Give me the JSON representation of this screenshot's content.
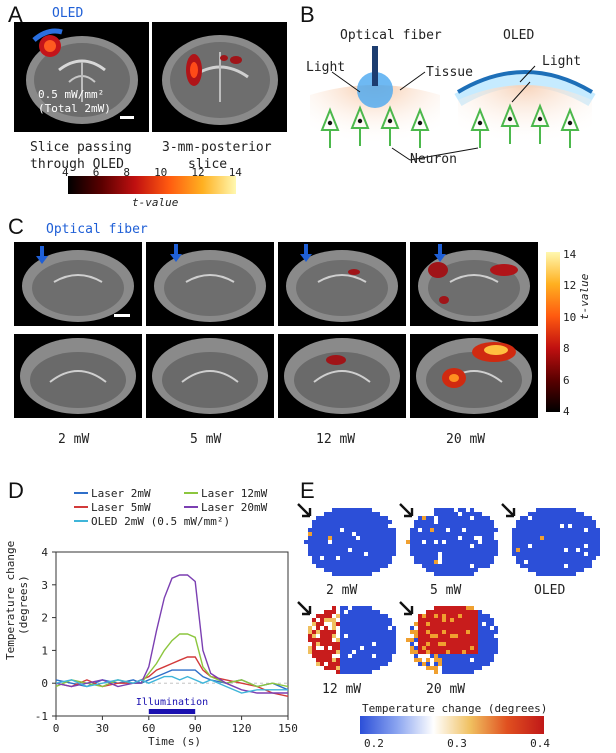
{
  "panels": {
    "A": "A",
    "B": "B",
    "C": "C",
    "D": "D",
    "E": "E"
  },
  "A": {
    "oled_label": "OLED",
    "intensity_line1": "0.5 mW/mm²",
    "intensity_line2": "(Total 2mW)",
    "caption_left_1": "Slice passing",
    "caption_left_2": "through OLED",
    "caption_right_1": "3-mm-posterior",
    "caption_right_2": "slice",
    "colorbar_ticks": [
      "4",
      "6",
      "8",
      "10",
      "12",
      "14"
    ],
    "colorbar_label": "t-value"
  },
  "B": {
    "optical_fiber": "Optical fiber",
    "oled": "OLED",
    "light_left": "Light",
    "light_right": "Light",
    "tissue": "Tissue",
    "neuron": "Neuron"
  },
  "C": {
    "optical_fiber": "Optical fiber",
    "powers": [
      "2 mW",
      "5 mW",
      "12 mW",
      "20 mW"
    ],
    "colorbar_ticks": [
      "14",
      "12",
      "10",
      "8",
      "6",
      "4"
    ],
    "colorbar_label": "t-value"
  },
  "D": {
    "legend": [
      {
        "name": "Laser 2mW",
        "color": "#2f6fc9"
      },
      {
        "name": "Laser 12mW",
        "color": "#8cc63e"
      },
      {
        "name": "Laser 5mW",
        "color": "#d23a3a"
      },
      {
        "name": "Laser 20mW",
        "color": "#7b3fb2"
      },
      {
        "name": "OLED 2mW (0.5 mW/mm²)",
        "color": "#3fb5d9"
      }
    ],
    "illumination": "Illumination",
    "ylabel_1": "Temperature change",
    "ylabel_2": "(degrees)",
    "xlabel": "Time (s)"
  },
  "chart_data": {
    "type": "line",
    "xlabel": "Time (s)",
    "ylabel": "Temperature change (degrees)",
    "xlim": [
      0,
      150
    ],
    "ylim": [
      -1,
      4
    ],
    "xticks": [
      0,
      30,
      60,
      90,
      120,
      150
    ],
    "yticks": [
      -1,
      0,
      1,
      2,
      3,
      4
    ],
    "x": [
      0,
      10,
      20,
      30,
      40,
      50,
      55,
      60,
      65,
      70,
      75,
      80,
      85,
      90,
      95,
      100,
      110,
      120,
      130,
      140,
      150
    ],
    "series": [
      {
        "name": "Laser 2mW",
        "color": "#2f6fc9",
        "values": [
          0.1,
          0.0,
          -0.1,
          0.1,
          0.0,
          0.1,
          0.0,
          0.1,
          0.2,
          0.3,
          0.4,
          0.4,
          0.4,
          0.4,
          0.2,
          0.1,
          0.0,
          0.1,
          -0.1,
          0.0,
          -0.2
        ]
      },
      {
        "name": "Laser 5mW",
        "color": "#d23a3a",
        "values": [
          0.0,
          -0.1,
          0.1,
          -0.1,
          0.0,
          0.0,
          0.1,
          0.2,
          0.4,
          0.5,
          0.6,
          0.7,
          0.8,
          0.8,
          0.4,
          0.2,
          0.1,
          0.0,
          -0.1,
          -0.3,
          -0.4
        ]
      },
      {
        "name": "Laser 12mW",
        "color": "#8cc63e",
        "values": [
          -0.1,
          0.1,
          0.0,
          -0.1,
          0.1,
          0.0,
          0.0,
          0.3,
          0.6,
          1.0,
          1.3,
          1.5,
          1.5,
          1.4,
          0.5,
          0.2,
          0.0,
          0.1,
          -0.1,
          0.0,
          -0.1
        ]
      },
      {
        "name": "Laser 20mW",
        "color": "#7b3fb2",
        "values": [
          0.0,
          -0.1,
          0.0,
          0.1,
          -0.1,
          0.0,
          0.0,
          0.5,
          1.6,
          2.6,
          3.2,
          3.3,
          3.3,
          3.1,
          1.0,
          0.3,
          0.0,
          -0.2,
          -0.3,
          -0.3,
          -0.3
        ]
      },
      {
        "name": "OLED 2mW (0.5 mW/mm²)",
        "color": "#3fb5d9",
        "values": [
          0.0,
          0.1,
          -0.1,
          0.0,
          0.1,
          0.0,
          0.1,
          0.0,
          0.1,
          0.2,
          0.2,
          0.1,
          0.2,
          0.1,
          0.0,
          0.1,
          -0.1,
          -0.3,
          -0.2,
          -0.2,
          -0.2
        ]
      }
    ],
    "illumination_x": [
      60,
      90
    ]
  },
  "E": {
    "labels": [
      "2 mW",
      "5 mW",
      "OLED",
      "12 mW",
      "20 mW"
    ],
    "colorbar_ticks": [
      "0.2",
      "0.3",
      "0.4"
    ],
    "colorbar_label": "Temperature change (degrees)"
  }
}
